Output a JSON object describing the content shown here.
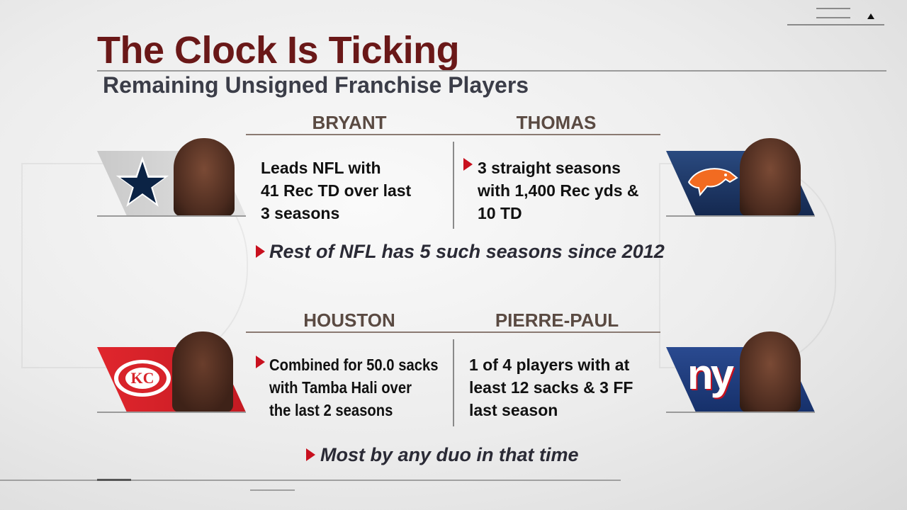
{
  "header": {
    "title": "The Clock Is Ticking",
    "subtitle": "Remaining Unsigned Franchise Players"
  },
  "colors": {
    "title": "#6a1818",
    "bullet": "#c8101e",
    "cowboys": "#0b2345",
    "broncos": "#1d3866",
    "chiefs": "#d8232a",
    "giants": "#1e3a7a"
  },
  "section1": {
    "left": {
      "name": "BRYANT",
      "team_icon": "cowboys-star-logo",
      "stat": [
        "Leads NFL with",
        "41 Rec TD over last",
        "3 seasons"
      ]
    },
    "right": {
      "name": "THOMAS",
      "team_icon": "broncos-logo",
      "stat": [
        "3 straight seasons",
        "with 1,400 Rec yds &",
        "10 TD"
      ]
    },
    "note": "Rest of NFL has 5 such seasons since 2012"
  },
  "section2": {
    "left": {
      "name": "HOUSTON",
      "team_icon": "chiefs-logo",
      "stat": [
        "Combined for 50.0 sacks",
        "with Tamba Hali over",
        "the last 2 seasons"
      ]
    },
    "right": {
      "name": "PIERRE-PAUL",
      "team_icon": "giants-logo",
      "logo_text": "ny",
      "stat": [
        "1 of 4 players with at",
        "least 12 sacks & 3 FF",
        "last season"
      ]
    },
    "note": "Most by any duo in that time"
  }
}
